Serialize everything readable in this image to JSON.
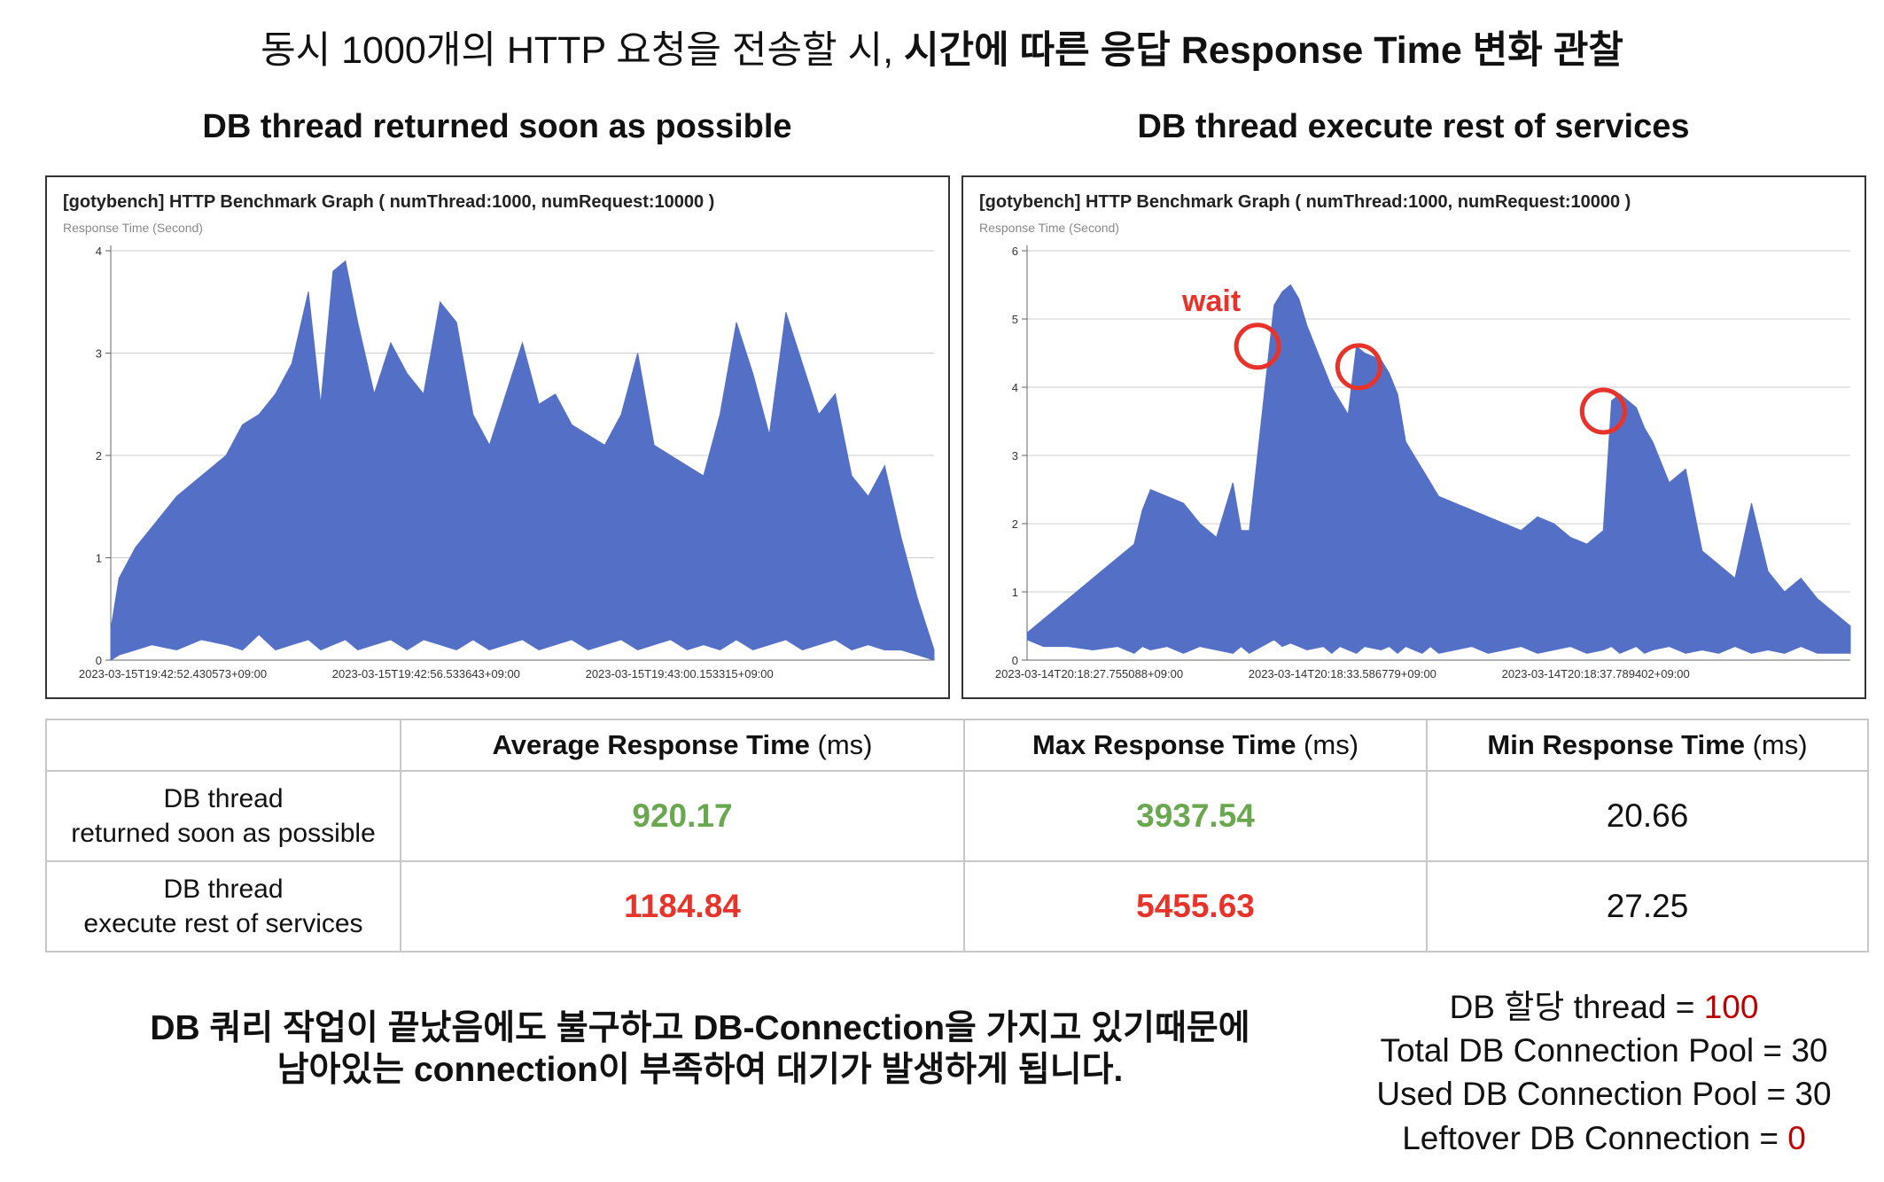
{
  "title": {
    "normal": "동시 1000개의 HTTP 요청을 전송할 시, ",
    "bold": "시간에 따른 응답 Response Time 변화 관찰"
  },
  "subtitles": {
    "left": "DB thread returned soon as possible",
    "right": "DB thread execute rest of services"
  },
  "annotation": {
    "label": "wait",
    "color": "#e8332a"
  },
  "colors": {
    "area": "#5470c6",
    "green": "#6aa84f",
    "red": "#e8332a",
    "grid": "#cccccc"
  },
  "chart_data": [
    {
      "type": "area",
      "title": "[gotybench] HTTP Benchmark Graph ( numThread:1000, numRequest:10000 )",
      "ylabel": "Response Time (Second)",
      "xlabel": "",
      "ylim": [
        0,
        4
      ],
      "yticks": [
        0,
        1,
        2,
        3,
        4
      ],
      "grid": true,
      "xticks": [
        "2023-03-15T19:42:52.430573+09:00",
        "2023-03-15T19:42:56.533643+09:00",
        "2023-03-15T19:43:00.153315+09:00"
      ],
      "series": [
        {
          "x_fraction": [
            0,
            0.01,
            0.03,
            0.05,
            0.08,
            0.11,
            0.14,
            0.16,
            0.18,
            0.2,
            0.22,
            0.24,
            0.255,
            0.27,
            0.285,
            0.3,
            0.32,
            0.34,
            0.36,
            0.38,
            0.4,
            0.42,
            0.44,
            0.46,
            0.48,
            0.5,
            0.52,
            0.54,
            0.56,
            0.58,
            0.6,
            0.62,
            0.64,
            0.66,
            0.68,
            0.7,
            0.72,
            0.74,
            0.76,
            0.78,
            0.8,
            0.82,
            0.84,
            0.86,
            0.88,
            0.9,
            0.92,
            0.94,
            0.96,
            0.98,
            1.0
          ],
          "upper": [
            0.3,
            0.8,
            1.1,
            1.3,
            1.6,
            1.8,
            2.0,
            2.3,
            2.4,
            2.6,
            2.9,
            3.6,
            2.5,
            3.8,
            3.9,
            3.3,
            2.6,
            3.1,
            2.8,
            2.6,
            3.5,
            3.3,
            2.4,
            2.1,
            2.6,
            3.1,
            2.5,
            2.6,
            2.3,
            2.2,
            2.1,
            2.4,
            3.0,
            2.1,
            2.0,
            1.9,
            1.8,
            2.4,
            3.3,
            2.8,
            2.2,
            3.4,
            2.9,
            2.4,
            2.6,
            1.8,
            1.6,
            1.9,
            1.2,
            0.6,
            0.1
          ],
          "lower": [
            0,
            0.05,
            0.1,
            0.15,
            0.1,
            0.2,
            0.15,
            0.1,
            0.25,
            0.1,
            0.15,
            0.2,
            0.1,
            0.15,
            0.2,
            0.1,
            0.15,
            0.2,
            0.1,
            0.2,
            0.15,
            0.1,
            0.2,
            0.1,
            0.15,
            0.2,
            0.1,
            0.15,
            0.2,
            0.1,
            0.15,
            0.2,
            0.1,
            0.15,
            0.2,
            0.1,
            0.15,
            0.1,
            0.2,
            0.1,
            0.15,
            0.2,
            0.1,
            0.15,
            0.2,
            0.1,
            0.15,
            0.1,
            0.1,
            0.05,
            0
          ]
        }
      ]
    },
    {
      "type": "area",
      "title": "[gotybench] HTTP Benchmark Graph ( numThread:1000, numRequest:10000 )",
      "ylabel": "Response Time (Second)",
      "xlabel": "",
      "ylim": [
        0,
        6
      ],
      "yticks": [
        0,
        1,
        2,
        3,
        4,
        5,
        6
      ],
      "grid": true,
      "xticks": [
        "2023-03-14T20:18:27.755088+09:00",
        "2023-03-14T20:18:33.586779+09:00",
        "2023-03-14T20:18:37.789402+09:00"
      ],
      "series": [
        {
          "x_fraction": [
            0,
            0.02,
            0.05,
            0.08,
            0.11,
            0.13,
            0.14,
            0.15,
            0.17,
            0.19,
            0.21,
            0.23,
            0.25,
            0.26,
            0.27,
            0.3,
            0.31,
            0.32,
            0.33,
            0.34,
            0.36,
            0.37,
            0.38,
            0.39,
            0.4,
            0.41,
            0.43,
            0.44,
            0.45,
            0.46,
            0.47,
            0.48,
            0.49,
            0.5,
            0.52,
            0.54,
            0.56,
            0.58,
            0.6,
            0.62,
            0.64,
            0.66,
            0.68,
            0.7,
            0.71,
            0.72,
            0.73,
            0.74,
            0.75,
            0.76,
            0.78,
            0.8,
            0.82,
            0.84,
            0.86,
            0.88,
            0.9,
            0.92,
            0.94,
            0.96,
            0.98,
            1.0
          ],
          "upper": [
            0.4,
            0.6,
            0.9,
            1.2,
            1.5,
            1.7,
            2.2,
            2.5,
            2.4,
            2.3,
            2.0,
            1.8,
            2.6,
            1.9,
            1.9,
            5.2,
            5.4,
            5.5,
            5.3,
            4.9,
            4.3,
            4.0,
            3.8,
            3.6,
            4.6,
            4.5,
            4.4,
            4.2,
            3.9,
            3.2,
            3.0,
            2.8,
            2.6,
            2.4,
            2.3,
            2.2,
            2.1,
            2.0,
            1.9,
            2.1,
            2.0,
            1.8,
            1.7,
            1.9,
            3.8,
            3.9,
            3.8,
            3.7,
            3.4,
            3.2,
            2.6,
            2.8,
            1.6,
            1.4,
            1.2,
            2.3,
            1.3,
            1.0,
            1.2,
            0.9,
            0.7,
            0.5
          ],
          "lower": [
            0.3,
            0.2,
            0.2,
            0.15,
            0.2,
            0.1,
            0.2,
            0.15,
            0.2,
            0.1,
            0.2,
            0.15,
            0.1,
            0.2,
            0.1,
            0.3,
            0.2,
            0.25,
            0.2,
            0.15,
            0.2,
            0.1,
            0.2,
            0.15,
            0.1,
            0.2,
            0.15,
            0.2,
            0.1,
            0.2,
            0.15,
            0.1,
            0.2,
            0.1,
            0.15,
            0.2,
            0.1,
            0.15,
            0.2,
            0.1,
            0.15,
            0.2,
            0.1,
            0.15,
            0.2,
            0.1,
            0.15,
            0.2,
            0.1,
            0.15,
            0.2,
            0.1,
            0.15,
            0.1,
            0.2,
            0.1,
            0.15,
            0.1,
            0.2,
            0.1,
            0.1,
            0.1
          ]
        }
      ],
      "annotations": [
        {
          "label": "wait",
          "x_fraction": 0.28,
          "y": 4.6
        },
        {
          "x_fraction": 0.403,
          "y": 4.3
        },
        {
          "x_fraction": 0.7,
          "y": 3.65
        }
      ]
    }
  ],
  "table": {
    "headers": [
      {
        "bold": "Average Response Time",
        "unit": " (ms)"
      },
      {
        "bold": "Max Response Time",
        "unit": " (ms)"
      },
      {
        "bold": "Min Response Time",
        "unit": " (ms)"
      }
    ],
    "rows": [
      {
        "label_line1": "DB thread",
        "label_line2": "returned soon as possible",
        "avg": "920.17",
        "max": "3937.54",
        "min": "20.66"
      },
      {
        "label_line1": "DB thread",
        "label_line2": "execute rest of services",
        "avg": "1184.84",
        "max": "5455.63",
        "min": "27.25"
      }
    ]
  },
  "conclusion": {
    "line1": "DB 쿼리 작업이 끝났음에도 불구하고 DB-Connection을 가지고 있기때문에",
    "line2": "남아있는 connection이 부족하여 대기가 발생하게 됩니다."
  },
  "stats": {
    "thread_label": "DB 할당 thread = ",
    "thread_value": "100",
    "total_pool": "Total DB Connection Pool = 30",
    "used_pool": "Used DB Connection Pool = 30",
    "leftover_label": "Leftover DB Connection = ",
    "leftover_value": "0"
  }
}
